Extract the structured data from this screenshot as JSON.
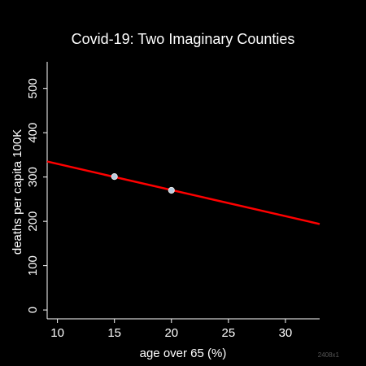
{
  "chart_data": {
    "type": "line",
    "title": "Covid-19: Two Imaginary Counties",
    "xlabel": "age over 65 (%)",
    "ylabel": "deaths per capita 100K",
    "xlim": [
      9.1,
      33.0
    ],
    "ylim": [
      -20,
      560
    ],
    "xticks": [
      10,
      15,
      20,
      25,
      30
    ],
    "yticks": [
      0,
      100,
      200,
      300,
      400,
      500
    ],
    "grid": false,
    "series": [
      {
        "type": "scatter",
        "x": [
          15,
          20
        ],
        "y": [
          301,
          270
        ]
      },
      {
        "type": "line",
        "x": [
          9.1,
          33.0
        ],
        "y": [
          335,
          194
        ]
      }
    ],
    "watermark": "2408x1",
    "colors": {
      "background": "#000000",
      "text": "#ffffff",
      "line": "#ff0000",
      "point_fill": "#b8cde0",
      "point_edge": "#e8e8e8",
      "watermark": "#555555"
    }
  }
}
